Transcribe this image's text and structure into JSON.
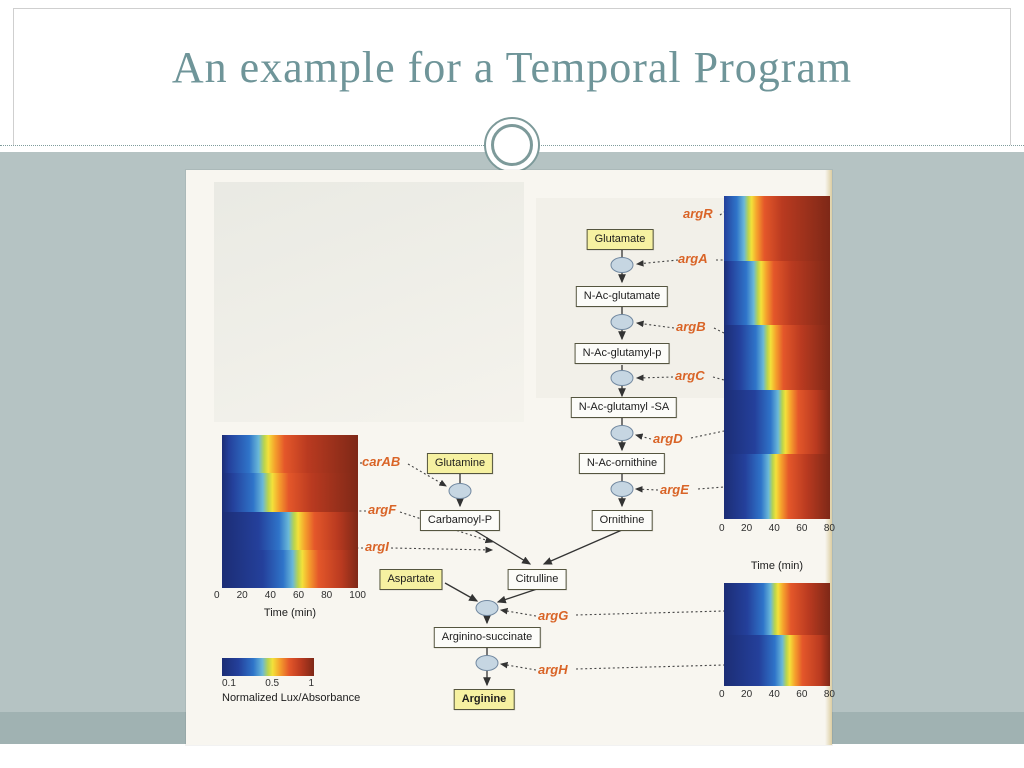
{
  "slide": {
    "title": "An example for a Temporal Program",
    "theme": {
      "accent": "#6f9599",
      "background": "#b5c3c3",
      "band": "#a0b2b2",
      "gene_label_color": "#d96427",
      "highlight_box_color": "#f6f1a1"
    }
  },
  "figure": {
    "boxes": {
      "glutamate": "Glutamate",
      "n_ac_glutamate": "N-Ac-glutamate",
      "n_ac_glutamyl_p": "N-Ac-glutamyl-p",
      "n_ac_glutamyl_sa": "N-Ac-glutamyl -SA",
      "n_ac_ornithine": "N-Ac-ornithine",
      "ornithine": "Ornithine",
      "glutamine": "Glutamine",
      "carbamoyl_p": "Carbamoyl-P",
      "aspartate": "Aspartate",
      "citrulline": "Citrulline",
      "arginino_succinate": "Arginino-succinate",
      "arginine": "Arginine"
    },
    "genes": {
      "argR": "argR",
      "argA": "argA",
      "argB": "argB",
      "argC": "argC",
      "argD": "argD",
      "argE": "argE",
      "carAB": "carAB",
      "argF": "argF",
      "argI": "argI",
      "argG": "argG",
      "argH": "argH"
    },
    "axes": {
      "left": {
        "ticks": [
          "0",
          "20",
          "40",
          "60",
          "80",
          "100"
        ],
        "label": "Time (min)"
      },
      "right_top": {
        "ticks": [
          "0",
          "20",
          "40",
          "60",
          "80"
        ],
        "label": "Time (min)"
      },
      "right_bottom": {
        "ticks": [
          "0",
          "20",
          "40",
          "60",
          "80"
        ]
      }
    },
    "legend": {
      "ticks": [
        "0.1",
        "0.5",
        "1"
      ],
      "label": "Normalized Lux/Absorbance"
    },
    "heatmaps": {
      "left": {
        "transitions": [
          33,
          36,
          55,
          58
        ]
      },
      "right_top": {
        "transitions": [
          25,
          34,
          43,
          57,
          48
        ]
      },
      "right_bottom": {
        "transitions": [
          50,
          61
        ]
      }
    }
  }
}
